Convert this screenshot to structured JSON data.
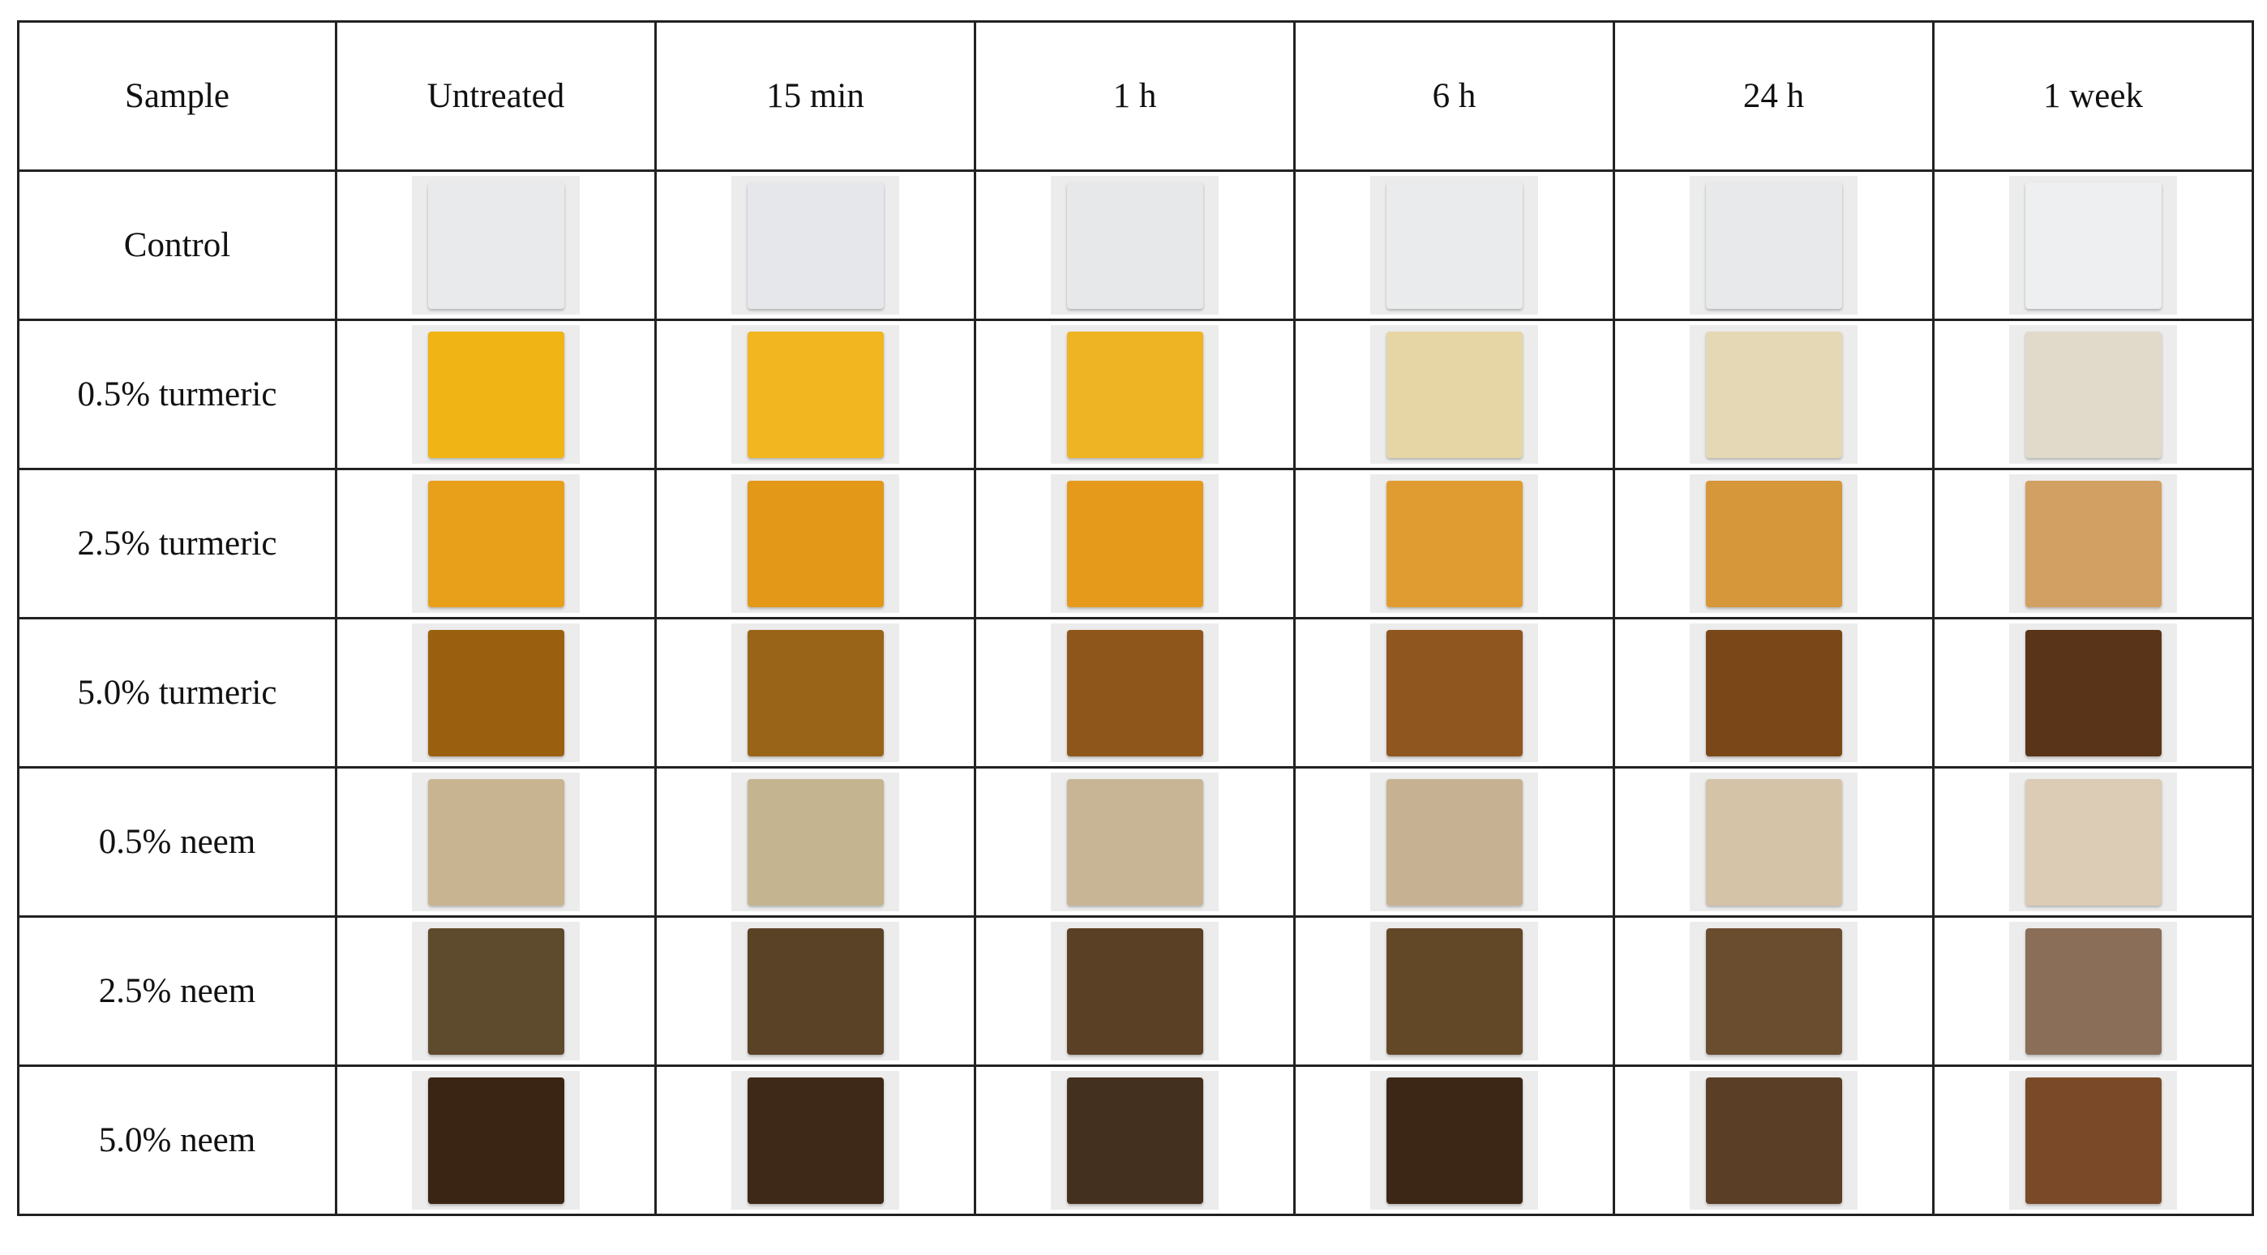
{
  "table": {
    "header": [
      "Sample",
      "Untreated",
      "15 min",
      "1 h",
      "6 h",
      "24 h",
      "1 week"
    ],
    "rows": [
      "Control",
      "0.5% turmeric",
      "2.5% turmeric",
      "5.0% turmeric",
      "0.5% neem",
      "2.5% neem",
      "5.0% neem"
    ]
  }
}
